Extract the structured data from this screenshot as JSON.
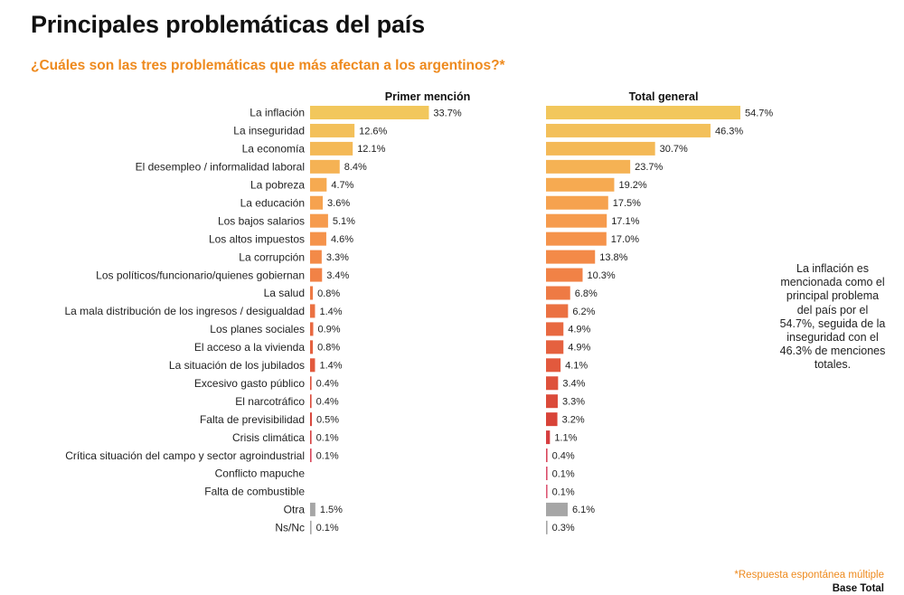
{
  "title": "Principales problemáticas del país",
  "subtitle": "¿Cuáles son las tres problemáticas que más afectan a los argentinos?*",
  "annotation": "La inflación es mencionada como el principal problema del país por el 54.7%, seguida de la inseguridad con el 46.3% de menciones totales.",
  "footnote": "*Respuesta espontánea múltiple",
  "base": "Base Total",
  "chart_data": {
    "type": "bar",
    "orientation": "horizontal",
    "categories": [
      "La inflación",
      "La inseguridad",
      "La economía",
      "El desempleo / informalidad laboral",
      "La pobreza",
      "La educación",
      "Los bajos salarios",
      "Los altos impuestos",
      "La corrupción",
      "Los políticos/funcionario/quienes gobiernan",
      "La salud",
      "La mala distribución de los ingresos / desigualdad",
      "Los planes sociales",
      "El acceso a la vivienda",
      "La situación de los jubilados",
      "Excesivo gasto público",
      "El narcotráfico",
      "Falta de previsibilidad",
      "Crisis climática",
      "Crítica situación del campo y sector agroindustrial",
      "Conflicto mapuche",
      "Falta de combustible",
      "Otra",
      "Ns/Nc"
    ],
    "series": [
      {
        "name": "Primer mención",
        "values": [
          33.7,
          12.6,
          12.1,
          8.4,
          4.7,
          3.6,
          5.1,
          4.6,
          3.3,
          3.4,
          0.8,
          1.4,
          0.9,
          0.8,
          1.4,
          0.4,
          0.4,
          0.5,
          0.1,
          0.1,
          null,
          null,
          1.5,
          0.1
        ],
        "labels": [
          "33.7%",
          "12.6%",
          "12.1%",
          "8.4%",
          "4.7%",
          "3.6%",
          "5.1%",
          "4.6%",
          "3.3%",
          "3.4%",
          "0.8%",
          "1.4%",
          "0.9%",
          "0.8%",
          "1.4%",
          "0.4%",
          "0.4%",
          "0.5%",
          "0.1%",
          "0.1%",
          "",
          "",
          "1.5%",
          "0.1%"
        ]
      },
      {
        "name": "Total general",
        "values": [
          54.7,
          46.3,
          30.7,
          23.7,
          19.2,
          17.5,
          17.1,
          17.0,
          13.8,
          10.3,
          6.8,
          6.2,
          4.9,
          4.9,
          4.1,
          3.4,
          3.3,
          3.2,
          1.1,
          0.4,
          0.1,
          0.1,
          6.1,
          0.3
        ],
        "labels": [
          "54.7%",
          "46.3%",
          "30.7%",
          "23.7%",
          "19.2%",
          "17.5%",
          "17.1%",
          "17.0%",
          "13.8%",
          "10.3%",
          "6.8%",
          "6.2%",
          "4.9%",
          "4.9%",
          "4.1%",
          "3.4%",
          "3.3%",
          "3.2%",
          "1.1%",
          "0.4%",
          "0.1%",
          "0.1%",
          "6.1%",
          "0.3%"
        ]
      }
    ],
    "colors": [
      "#f2c75c",
      "#f3c05a",
      "#f4b957",
      "#f5b254",
      "#f6aa51",
      "#f6a24f",
      "#f69b4d",
      "#f5934b",
      "#f38a48",
      "#f18246",
      "#ee7a44",
      "#eb7142",
      "#e86941",
      "#e5613f",
      "#e2593d",
      "#de513b",
      "#db4a3a",
      "#d84338",
      "#d63f40",
      "#d8455a",
      "#da4e6a",
      "#dd5875",
      "#a6a6a6",
      "#a6a6a6"
    ],
    "grid": false,
    "legend": "none"
  }
}
